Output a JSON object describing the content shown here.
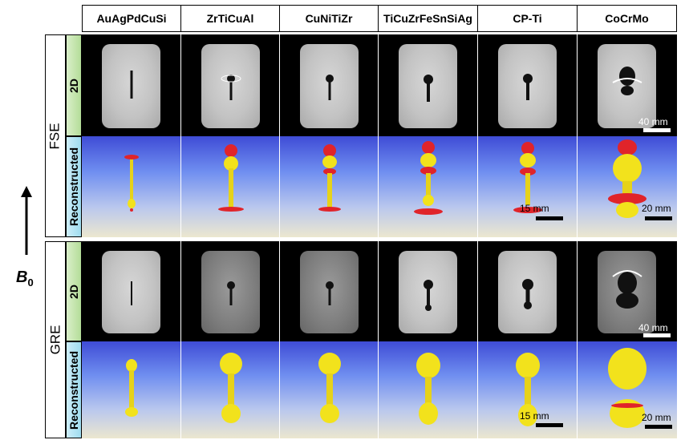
{
  "columns": [
    "AuAgPdCuSi",
    "ZrTiCuAl",
    "CuNiTiZr",
    "TiCuZrFeSnSiAg",
    "CP-Ti",
    "CoCrMo"
  ],
  "sequences": {
    "fse": "FSE",
    "gre": "GRE"
  },
  "row_labels": {
    "twoD": "2D",
    "reconstructed": "Reconstructed"
  },
  "field": {
    "symbol": "B",
    "subscript": "0"
  },
  "scales": {
    "fse_2d": "40 mm",
    "fse_recon_ti": "15 mm",
    "fse_recon_cocrmo": "20 mm",
    "gre_2d": "40 mm",
    "gre_recon_ti": "15 mm",
    "gre_recon_cocrmo": "20 mm"
  },
  "colors": {
    "artifact_red": "#e0242a",
    "implant_yellow": "#f2e21c",
    "label_green": "#b4dd98",
    "label_cyan": "#9fdcef"
  }
}
